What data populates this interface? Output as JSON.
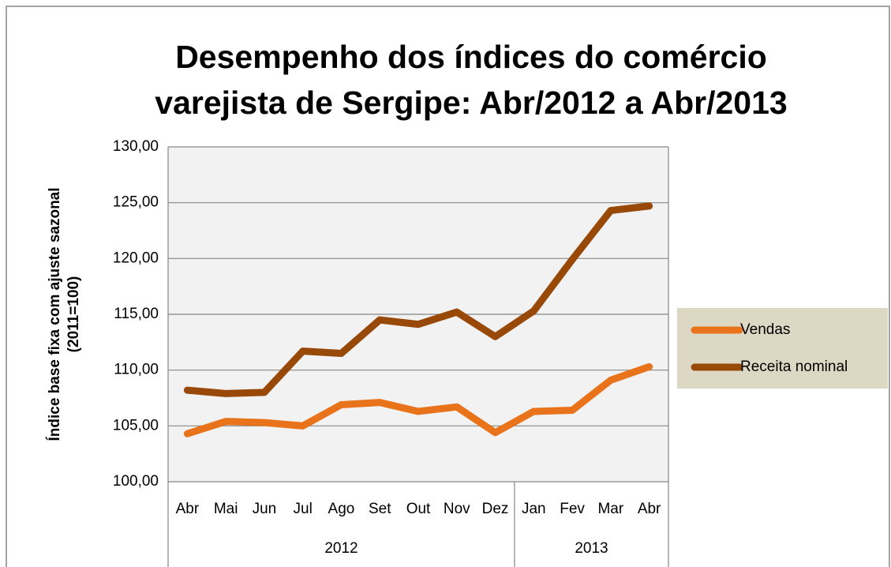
{
  "chart_data": {
    "type": "line",
    "title": [
      "Desempenho dos índices do comércio",
      "varejista de Sergipe: Abr/2012 a Abr/2013"
    ],
    "ylabel": [
      "Índice base fixa com ajuste sazonal",
      "(2011=100)"
    ],
    "categories": [
      "Abr",
      "Mai",
      "Jun",
      "Jul",
      "Ago",
      "Set",
      "Out",
      "Nov",
      "Dez",
      "Jan",
      "Fev",
      "Mar",
      "Abr"
    ],
    "groups": [
      {
        "label": "2012",
        "count": 9
      },
      {
        "label": "2013",
        "count": 4
      }
    ],
    "series": [
      {
        "name": "Vendas",
        "color": "#e8731b",
        "values": [
          104.3,
          105.4,
          105.3,
          105.0,
          106.9,
          107.1,
          106.3,
          106.7,
          104.4,
          106.3,
          106.4,
          109.1,
          110.3
        ]
      },
      {
        "name": "Receita nominal",
        "color": "#984807",
        "values": [
          108.2,
          107.9,
          108.0,
          111.7,
          111.5,
          114.5,
          114.1,
          115.2,
          113.0,
          115.3,
          119.9,
          124.3,
          124.7
        ]
      }
    ],
    "ylim": [
      100,
      130
    ],
    "yticks": [
      {
        "value": 100,
        "label": "100,00"
      },
      {
        "value": 105,
        "label": "105,00"
      },
      {
        "value": 110,
        "label": "110,00"
      },
      {
        "value": 115,
        "label": "115,00"
      },
      {
        "value": 120,
        "label": "120,00"
      },
      {
        "value": 125,
        "label": "125,00"
      },
      {
        "value": 130,
        "label": "130,00"
      }
    ],
    "grid": true,
    "legend": "right"
  }
}
